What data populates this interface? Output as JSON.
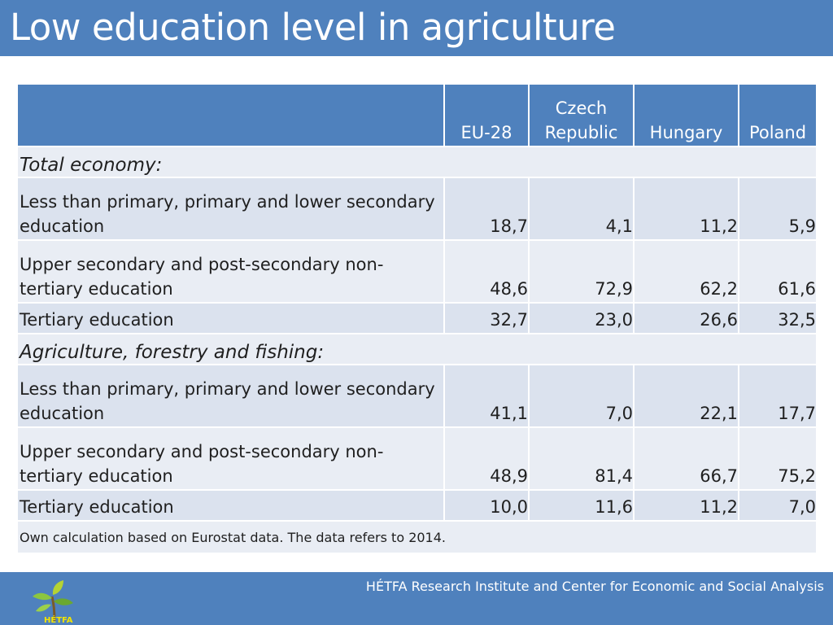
{
  "slide": {
    "title": "Low education level in agriculture",
    "footer": "HÉTFA Research Institute and Center for Economic and Social Analysis",
    "logo_text": "HÉTFA"
  },
  "table": {
    "columns": [
      "EU-28",
      "Czech Republic",
      "Hungary",
      "Poland"
    ],
    "sections": [
      {
        "title": "Total economy:",
        "rows": [
          {
            "label": "Less than primary, primary and lower secondary education",
            "values": [
              "18,7",
              "4,1",
              "11,2",
              "5,9"
            ]
          },
          {
            "label": "Upper secondary and post-secondary non-tertiary education",
            "values": [
              "48,6",
              "72,9",
              "62,2",
              "61,6"
            ]
          },
          {
            "label": "Tertiary education",
            "values": [
              "32,7",
              "23,0",
              "26,6",
              "32,5"
            ]
          }
        ]
      },
      {
        "title": "Agriculture, forestry and fishing:",
        "rows": [
          {
            "label": "Less than primary, primary and lower secondary education",
            "values": [
              "41,1",
              "7,0",
              "22,1",
              "17,7"
            ]
          },
          {
            "label": "Upper secondary and post-secondary non-tertiary education",
            "values": [
              "48,9",
              "81,4",
              "66,7",
              "75,2"
            ]
          },
          {
            "label": "Tertiary education",
            "values": [
              "10,0",
              "11,6",
              "11,2",
              "7,0"
            ]
          }
        ]
      }
    ],
    "note": "Own calculation based on Eurostat data. The data refers to 2014."
  },
  "colors": {
    "accent": "#4f81bd",
    "row_light": "#e9edf4",
    "row_dark": "#dbe2ee"
  }
}
